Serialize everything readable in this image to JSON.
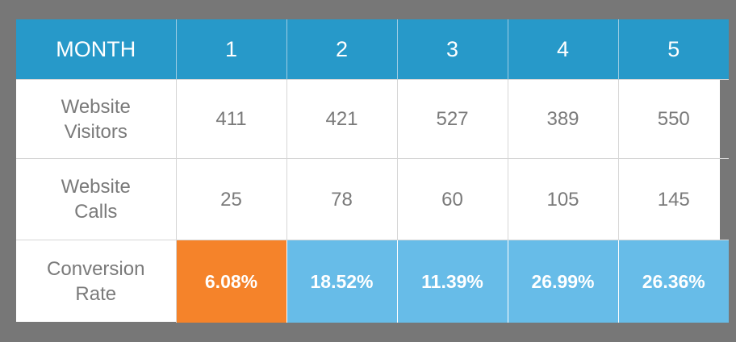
{
  "header": {
    "label": "MONTH",
    "months": [
      "1",
      "2",
      "3",
      "4",
      "5"
    ]
  },
  "rows": [
    {
      "label_line1": "Website",
      "label_line2": "Visitors",
      "values": [
        "411",
        "421",
        "527",
        "389",
        "550"
      ]
    },
    {
      "label_line1": "Website",
      "label_line2": "Calls",
      "values": [
        "25",
        "78",
        "60",
        "105",
        "145"
      ]
    },
    {
      "label_line1": "Conversion",
      "label_line2": "Rate",
      "values": [
        "6.08%",
        "18.52%",
        "11.39%",
        "26.99%",
        "26.36%"
      ]
    }
  ],
  "colors": {
    "page_background": "#777777",
    "header_background": "#2799c9",
    "rate_low": "#f5832a",
    "rate_high": "#67bce8",
    "cell_text": "#7a7a7a"
  }
}
